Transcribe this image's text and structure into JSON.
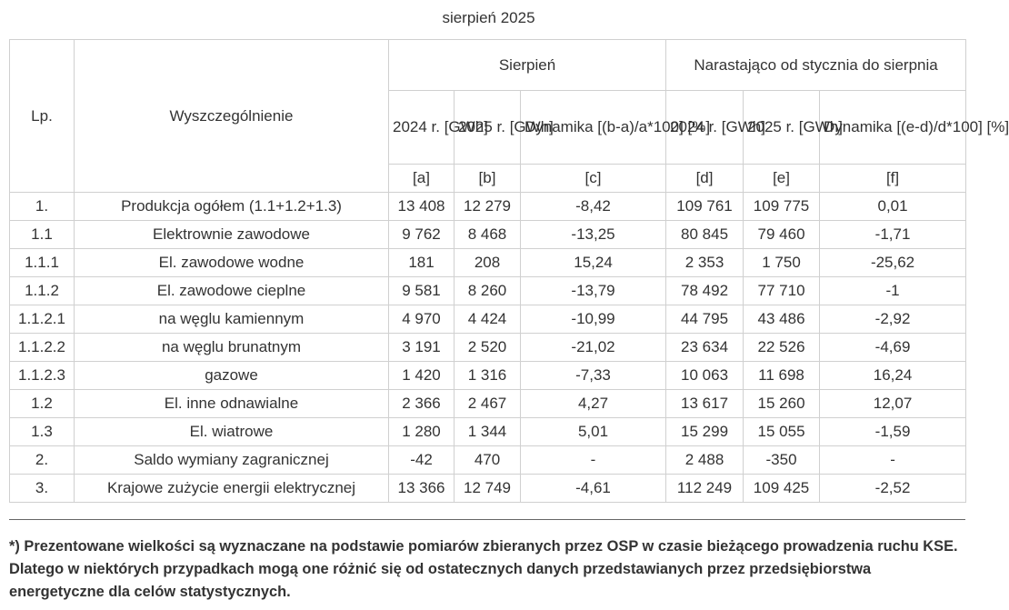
{
  "caption": "sierpień 2025",
  "header": {
    "lp": "Lp.",
    "wyszczegolnienie": "Wyszczególnienie",
    "group1": "Sierpień",
    "group2": "Narastająco\nod stycznia do sierpnia",
    "col_a": "2024 r.\n[GWh]",
    "col_b": "2025 r.\n[GWh]",
    "col_c": "Dynamika\n[(b-a)/a*100]\n[%]",
    "col_d": "2024 r.\n[GWh]",
    "col_e": "2025 r.\n[GWh]",
    "col_f": "Dynamika\n[(e-d)/d*100]\n[%]",
    "key_a": "[a]",
    "key_b": "[b]",
    "key_c": "[c]",
    "key_d": "[d]",
    "key_e": "[e]",
    "key_f": "[f]"
  },
  "rows": [
    {
      "lp": "1.",
      "name": "Produkcja ogółem (1.1+1.2+1.3)",
      "a": "13 408",
      "b": "12 279",
      "c": "-8,42",
      "d": "109 761",
      "e": "109 775",
      "f": "0,01"
    },
    {
      "lp": "1.1",
      "name": "Elektrownie zawodowe",
      "a": "9 762",
      "b": "8 468",
      "c": "-13,25",
      "d": "80 845",
      "e": "79 460",
      "f": "-1,71"
    },
    {
      "lp": "1.1.1",
      "name": "El. zawodowe wodne",
      "a": "181",
      "b": "208",
      "c": "15,24",
      "d": "2 353",
      "e": "1 750",
      "f": "-25,62"
    },
    {
      "lp": "1.1.2",
      "name": "El. zawodowe cieplne",
      "a": "9 581",
      "b": "8 260",
      "c": "-13,79",
      "d": "78 492",
      "e": "77 710",
      "f": "-1"
    },
    {
      "lp": "1.1.2.1",
      "name": "na węglu kamiennym",
      "a": "4 970",
      "b": "4 424",
      "c": "-10,99",
      "d": "44 795",
      "e": "43 486",
      "f": "-2,92"
    },
    {
      "lp": "1.1.2.2",
      "name": "na węglu brunatnym",
      "a": "3 191",
      "b": "2 520",
      "c": "-21,02",
      "d": "23 634",
      "e": "22 526",
      "f": "-4,69"
    },
    {
      "lp": "1.1.2.3",
      "name": "gazowe",
      "a": "1 420",
      "b": "1 316",
      "c": "-7,33",
      "d": "10 063",
      "e": "11 698",
      "f": "16,24"
    },
    {
      "lp": "1.2",
      "name": "El. inne odnawialne",
      "a": "2 366",
      "b": "2 467",
      "c": "4,27",
      "d": "13 617",
      "e": "15 260",
      "f": "12,07"
    },
    {
      "lp": "1.3",
      "name": "El. wiatrowe",
      "a": "1 280",
      "b": "1 344",
      "c": "5,01",
      "d": "15 299",
      "e": "15 055",
      "f": "-1,59"
    },
    {
      "lp": "2.",
      "name": "Saldo wymiany zagranicznej",
      "a": "-42",
      "b": "470",
      "c": "-",
      "d": "2 488",
      "e": "-350",
      "f": "-"
    },
    {
      "lp": "3.",
      "name": "Krajowe zużycie energii elektrycznej",
      "a": "13 366",
      "b": "12 749",
      "c": "-4,61",
      "d": "112 249",
      "e": "109 425",
      "f": "-2,52"
    }
  ],
  "footnote": "*) Prezentowane wielkości są wyznaczane na podstawie pomiarów zbieranych przez OSP w czasie bieżącego prowadzenia ruchu KSE. Dlatego w niektórych przypadkach mogą one różnić się od ostatecznych danych przedstawianych przez przedsiębiorstwa energetyczne dla celów statystycznych.",
  "colors": {
    "text": "#333333",
    "border": "#d0d0d0",
    "rule": "#666666"
  }
}
